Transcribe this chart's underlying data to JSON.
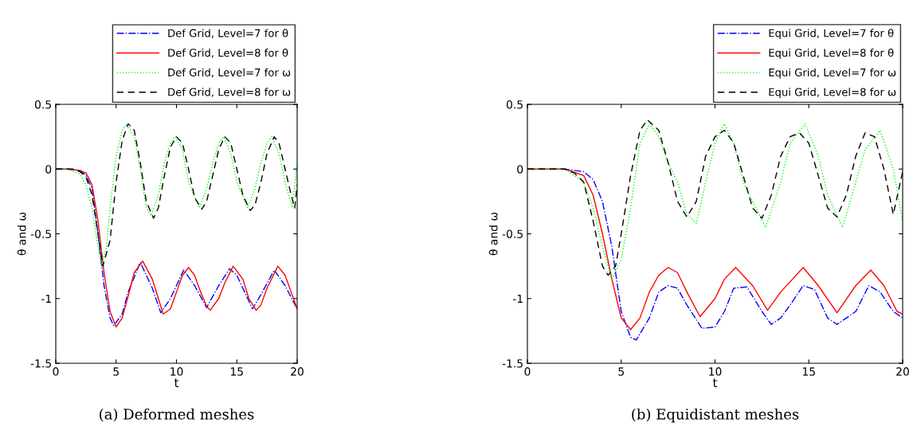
{
  "chart_data": [
    {
      "type": "line",
      "title": "(a) Deformed meshes",
      "xlabel": "t",
      "ylabel": "θ and ω",
      "xlim": [
        0,
        20
      ],
      "ylim": [
        -1.5,
        0.5
      ],
      "xticks": [
        0,
        5,
        10,
        15,
        20
      ],
      "yticks": [
        -1.5,
        -1,
        -0.5,
        0,
        0.5
      ],
      "grid": false,
      "legend": "top right",
      "marker": "none",
      "series": [
        {
          "name": "Def Grid, Level=7 for θ",
          "color": "#0000ff",
          "line_style": "dashdot",
          "x": [
            0,
            1,
            2,
            2.5,
            3,
            3.5,
            4,
            4.5,
            4.8,
            5.5,
            6,
            7,
            8,
            8.7,
            9.5,
            10.6,
            11.5,
            12.5,
            13.5,
            14.4,
            15,
            16.3,
            17,
            18.1,
            19,
            20
          ],
          "values": [
            0,
            0,
            -0.01,
            -0.05,
            -0.15,
            -0.5,
            -0.9,
            -1.15,
            -1.21,
            -1.12,
            -0.95,
            -0.72,
            -0.92,
            -1.11,
            -1.0,
            -0.78,
            -0.9,
            -1.07,
            -0.9,
            -0.77,
            -0.82,
            -1.08,
            -0.97,
            -0.78,
            -0.9,
            -1.08
          ]
        },
        {
          "name": "Def Grid, Level=8 for θ",
          "color": "#ff0000",
          "line_style": "solid",
          "x": [
            0,
            1,
            2,
            2.5,
            3,
            3.5,
            4,
            4.5,
            5,
            5.5,
            6,
            6.5,
            7.2,
            8,
            8.5,
            8.9,
            9.5,
            10,
            10.5,
            11,
            11.5,
            12,
            12.5,
            12.8,
            13.5,
            14,
            14.7,
            15.5,
            16,
            16.6,
            17,
            17.5,
            18.4,
            19,
            19.5,
            20
          ],
          "values": [
            0,
            0,
            -0.01,
            -0.03,
            -0.12,
            -0.4,
            -0.8,
            -1.1,
            -1.22,
            -1.15,
            -0.98,
            -0.8,
            -0.71,
            -0.85,
            -1.0,
            -1.12,
            -1.08,
            -0.95,
            -0.82,
            -0.76,
            -0.82,
            -0.95,
            -1.06,
            -1.09,
            -1.0,
            -0.88,
            -0.75,
            -0.85,
            -1.0,
            -1.09,
            -1.05,
            -0.92,
            -0.75,
            -0.82,
            -0.95,
            -1.08
          ]
        },
        {
          "name": "Def Grid, Level=7 for ω",
          "color": "#00ff00",
          "line_style": "dotted",
          "x": [
            0,
            1,
            2,
            2.5,
            3,
            3.5,
            3.8,
            4.2,
            4.5,
            5,
            5.5,
            5.9,
            6.5,
            7,
            7.5,
            7.9,
            8.5,
            9,
            9.5,
            9.9,
            10.5,
            11,
            11.9,
            12.5,
            13,
            13.5,
            13.9,
            14.5,
            15,
            15.9,
            16.5,
            17,
            17.5,
            17.9,
            18.5,
            19,
            19.6,
            20
          ],
          "values": [
            0,
            0,
            -0.04,
            -0.12,
            -0.3,
            -0.6,
            -0.75,
            -0.6,
            -0.3,
            0.1,
            0.3,
            0.35,
            0.25,
            0.0,
            -0.3,
            -0.36,
            -0.2,
            0.05,
            0.2,
            0.25,
            0.15,
            -0.1,
            -0.3,
            -0.15,
            0.05,
            0.2,
            0.25,
            0.12,
            -0.1,
            -0.3,
            -0.15,
            0.05,
            0.2,
            0.25,
            0.12,
            -0.1,
            -0.3,
            0.05
          ]
        },
        {
          "name": "Def Grid, Level=8 for ω",
          "color": "#000000",
          "line_style": "dashed",
          "x": [
            0,
            1.5,
            2,
            2.5,
            3,
            3.5,
            3.9,
            4.5,
            5,
            5.5,
            6,
            6.5,
            7,
            7.5,
            8.1,
            8.5,
            9,
            9.5,
            10,
            10.5,
            11,
            11.5,
            12.1,
            12.5,
            13,
            13.5,
            14,
            14.5,
            15,
            15.5,
            16.1,
            16.5,
            17,
            17.5,
            18.1,
            18.5,
            19,
            19.5,
            19.8,
            20
          ],
          "values": [
            0,
            0,
            -0.02,
            -0.06,
            -0.2,
            -0.5,
            -0.75,
            -0.55,
            -0.1,
            0.22,
            0.35,
            0.3,
            0.05,
            -0.25,
            -0.38,
            -0.3,
            -0.05,
            0.17,
            0.25,
            0.2,
            0.0,
            -0.22,
            -0.31,
            -0.25,
            -0.05,
            0.15,
            0.25,
            0.2,
            0.0,
            -0.2,
            -0.32,
            -0.28,
            -0.1,
            0.12,
            0.25,
            0.2,
            0.0,
            -0.2,
            -0.3,
            -0.12
          ]
        }
      ]
    },
    {
      "type": "line",
      "title": "(b) Equidistant meshes",
      "xlabel": "t",
      "ylabel": "θ and ω",
      "xlim": [
        0,
        20
      ],
      "ylim": [
        -1.5,
        0.5
      ],
      "xticks": [
        0,
        5,
        10,
        15,
        20
      ],
      "yticks": [
        -1.5,
        -1,
        -0.5,
        0,
        0.5
      ],
      "grid": false,
      "legend": "top right",
      "marker": "none",
      "series": [
        {
          "name": "Equi Grid, Level=7 for θ",
          "color": "#0000ff",
          "line_style": "dashdot",
          "x": [
            0,
            2,
            3,
            3.5,
            4,
            4.5,
            5,
            5.5,
            5.8,
            6.5,
            7,
            7.5,
            8,
            8.5,
            9.3,
            10,
            10.5,
            11,
            11.7,
            12.5,
            13,
            13.5,
            14,
            14.7,
            15.3,
            16,
            16.5,
            17.5,
            18.2,
            18.8,
            19.5,
            20
          ],
          "values": [
            0,
            0,
            -0.02,
            -0.08,
            -0.25,
            -0.6,
            -1.1,
            -1.3,
            -1.32,
            -1.15,
            -0.95,
            -0.9,
            -0.92,
            -1.05,
            -1.23,
            -1.22,
            -1.1,
            -0.92,
            -0.91,
            -1.1,
            -1.2,
            -1.15,
            -1.05,
            -0.9,
            -0.93,
            -1.15,
            -1.2,
            -1.1,
            -0.9,
            -0.95,
            -1.1,
            -1.15
          ]
        },
        {
          "name": "Equi Grid, Level=8 for θ",
          "color": "#ff0000",
          "line_style": "solid",
          "x": [
            0,
            2,
            3,
            3.5,
            4,
            4.5,
            5,
            5.5,
            6,
            6.5,
            7,
            7.5,
            8,
            8.5,
            9.2,
            10,
            10.5,
            11.1,
            12,
            12.8,
            13.5,
            14.7,
            15.5,
            16.5,
            17.5,
            18.3,
            19,
            19.7,
            20
          ],
          "values": [
            0,
            0,
            -0.05,
            -0.2,
            -0.5,
            -0.85,
            -1.15,
            -1.24,
            -1.15,
            -0.95,
            -0.82,
            -0.76,
            -0.8,
            -0.95,
            -1.14,
            -1.0,
            -0.85,
            -0.76,
            -0.9,
            -1.09,
            -0.95,
            -0.76,
            -0.9,
            -1.11,
            -0.9,
            -0.78,
            -0.9,
            -1.1,
            -1.12
          ]
        },
        {
          "name": "Equi Grid, Level=7 for ω",
          "color": "#00ff00",
          "line_style": "dotted",
          "x": [
            0,
            2,
            3,
            3.5,
            4,
            4.5,
            5,
            5.5,
            6,
            6.5,
            7,
            7.5,
            8,
            8.5,
            9,
            9.5,
            10,
            10.5,
            11,
            11.5,
            12,
            12.7,
            13.5,
            14,
            14.8,
            15.5,
            16,
            16.8,
            17.5,
            18,
            18.8,
            19.5,
            20
          ],
          "values": [
            0,
            0,
            -0.1,
            -0.3,
            -0.6,
            -0.85,
            -0.7,
            -0.3,
            0.2,
            0.35,
            0.25,
            0.05,
            -0.1,
            -0.35,
            -0.42,
            -0.1,
            0.2,
            0.35,
            0.2,
            -0.1,
            -0.25,
            -0.45,
            -0.1,
            0.2,
            0.35,
            0.1,
            -0.2,
            -0.45,
            -0.1,
            0.15,
            0.3,
            0.0,
            -0.4
          ]
        },
        {
          "name": "Equi Grid, Level=8 for ω",
          "color": "#000000",
          "line_style": "dashed",
          "x": [
            0,
            2,
            2.5,
            3,
            3.5,
            4,
            4.3,
            4.7,
            5,
            5.5,
            6,
            6.4,
            7,
            7.5,
            8,
            8.5,
            9,
            9.5,
            10,
            10.5,
            11,
            11.5,
            12,
            12.5,
            13,
            13.5,
            14,
            14.5,
            15,
            15.5,
            16,
            16.5,
            17,
            17.5,
            18,
            18.5,
            19,
            19.5,
            20
          ],
          "values": [
            0,
            0,
            -0.03,
            -0.1,
            -0.4,
            -0.75,
            -0.82,
            -0.75,
            -0.5,
            -0.05,
            0.3,
            0.38,
            0.3,
            0.05,
            -0.25,
            -0.37,
            -0.25,
            0.1,
            0.25,
            0.3,
            0.2,
            -0.05,
            -0.3,
            -0.38,
            -0.2,
            0.1,
            0.25,
            0.28,
            0.2,
            -0.05,
            -0.3,
            -0.37,
            -0.2,
            0.1,
            0.28,
            0.25,
            0.0,
            -0.35,
            -0.02
          ]
        }
      ]
    }
  ]
}
